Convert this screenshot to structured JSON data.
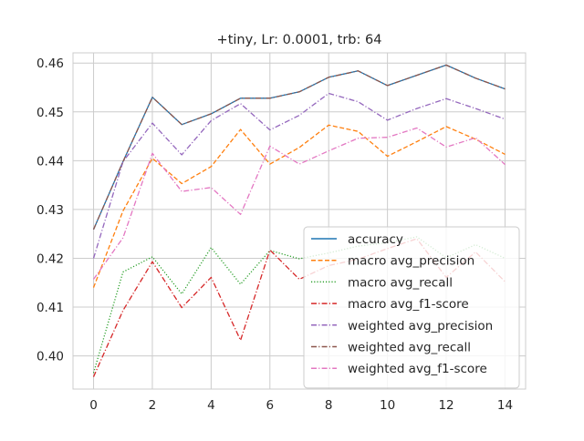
{
  "chart_data": {
    "type": "line",
    "title": "+tiny, Lr: 0.0001, trb: 64",
    "xlabel": "",
    "ylabel": "",
    "x": [
      0,
      1,
      2,
      3,
      4,
      5,
      6,
      7,
      8,
      9,
      10,
      11,
      12,
      13,
      14
    ],
    "xlim": [
      -0.7,
      14.7
    ],
    "ylim": [
      0.3932,
      0.4621
    ],
    "xticks": [
      0,
      2,
      4,
      6,
      8,
      10,
      12,
      14
    ],
    "xtick_labels": [
      "0",
      "2",
      "4",
      "6",
      "8",
      "10",
      "12",
      "14"
    ],
    "yticks": [
      0.4,
      0.41,
      0.42,
      0.43,
      0.44,
      0.45,
      0.46
    ],
    "ytick_labels": [
      "0.40",
      "0.41",
      "0.42",
      "0.43",
      "0.44",
      "0.45",
      "0.46"
    ],
    "grid": true,
    "legend_position": "lower-right",
    "series": [
      {
        "name": "accuracy",
        "color": "#1f77b4",
        "dash": "solid",
        "values": [
          0.4259,
          0.4398,
          0.453,
          0.4474,
          0.4496,
          0.4528,
          0.4528,
          0.4541,
          0.4571,
          0.4584,
          0.4554,
          0.4575,
          0.4596,
          0.4569,
          0.4547
        ]
      },
      {
        "name": "macro avg_precision",
        "color": "#ff7f0e",
        "dash": "dashed",
        "values": [
          0.414,
          0.4297,
          0.4405,
          0.4353,
          0.4388,
          0.4464,
          0.4393,
          0.4427,
          0.4473,
          0.446,
          0.4409,
          0.4439,
          0.447,
          0.4444,
          0.4413
        ]
      },
      {
        "name": "macro avg_recall",
        "color": "#2ca02c",
        "dash": "dotted",
        "values": [
          0.3965,
          0.4172,
          0.4203,
          0.4127,
          0.4222,
          0.4147,
          0.4216,
          0.4199,
          0.4211,
          0.4225,
          0.4232,
          0.4244,
          0.4201,
          0.4228,
          0.42
        ]
      },
      {
        "name": "macro avg_f1-score",
        "color": "#d62728",
        "dash": "dashdot",
        "values": [
          0.3957,
          0.4093,
          0.4193,
          0.4099,
          0.4161,
          0.4032,
          0.4217,
          0.4157,
          0.4185,
          0.4198,
          0.422,
          0.424,
          0.4161,
          0.4213,
          0.4152
        ]
      },
      {
        "name": "weighted avg_precision",
        "color": "#9467bd",
        "dash": "dashdot",
        "values": [
          0.42,
          0.4398,
          0.4477,
          0.4412,
          0.4482,
          0.4517,
          0.4463,
          0.4493,
          0.4538,
          0.4521,
          0.4483,
          0.4507,
          0.4527,
          0.4507,
          0.4485
        ]
      },
      {
        "name": "weighted avg_recall",
        "color": "#8c564b",
        "dash": "dashdot",
        "values": [
          0.4259,
          0.4398,
          0.453,
          0.4474,
          0.4496,
          0.4528,
          0.4528,
          0.4541,
          0.4571,
          0.4584,
          0.4554,
          0.4575,
          0.4596,
          0.4569,
          0.4547
        ]
      },
      {
        "name": "weighted avg_f1-score",
        "color": "#e377c2",
        "dash": "dashdot",
        "values": [
          0.4157,
          0.4242,
          0.4415,
          0.4337,
          0.4345,
          0.429,
          0.443,
          0.4393,
          0.442,
          0.4446,
          0.4448,
          0.4467,
          0.4428,
          0.4447,
          0.4392
        ]
      }
    ]
  }
}
